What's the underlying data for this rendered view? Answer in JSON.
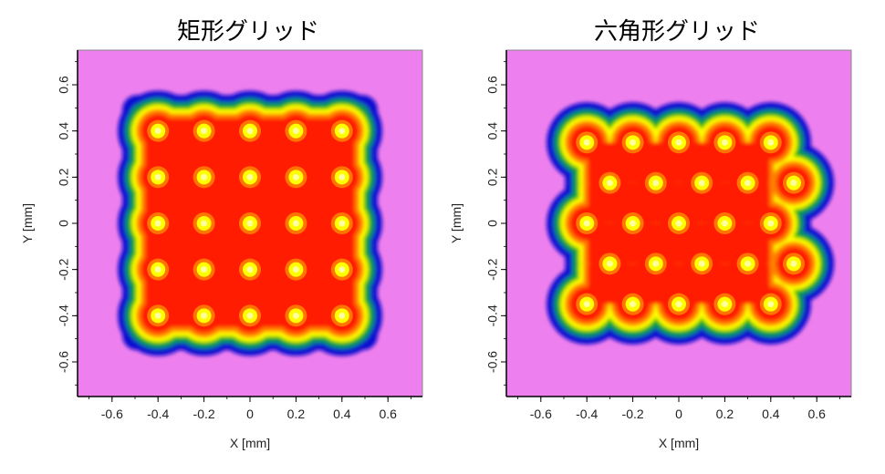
{
  "chart_data": [
    {
      "type": "heatmap",
      "title": "矩形グリッド",
      "xlabel": "X [mm]",
      "ylabel": "Y [mm]",
      "xlim": [
        -0.75,
        0.75
      ],
      "ylim": [
        -0.75,
        0.75
      ],
      "xticks": [
        "-0.6",
        "-0.4",
        "-0.2",
        "0",
        "0.2",
        "0.4",
        "0.6"
      ],
      "yticks": [
        "0.6",
        "0.4",
        "0.2",
        "0",
        "-0.2",
        "-0.4",
        "-0.6"
      ],
      "grid": false,
      "colormap": [
        "#ee7fee",
        "#1010d0",
        "#00b000",
        "#ffff00",
        "#ff8000",
        "#ff1a00"
      ],
      "grid_type": "rectangular",
      "spot_centers_x": [
        -0.4,
        -0.2,
        0.0,
        0.2,
        0.4
      ],
      "spot_centers_y": [
        -0.4,
        -0.2,
        0.0,
        0.2,
        0.4
      ],
      "extent": [
        -0.5,
        0.5,
        -0.5,
        0.5
      ]
    },
    {
      "type": "heatmap",
      "title": "六角形グリッド",
      "xlabel": "X [mm]",
      "ylabel": "Y [mm]",
      "xlim": [
        -0.75,
        0.75
      ],
      "ylim": [
        -0.75,
        0.75
      ],
      "xticks": [
        "-0.6",
        "-0.4",
        "-0.2",
        "0",
        "0.2",
        "0.4",
        "0.6"
      ],
      "yticks": [
        "0.6",
        "0.4",
        "0.2",
        "0",
        "-0.2",
        "-0.4",
        "-0.6"
      ],
      "grid": false,
      "colormap": [
        "#ee7fee",
        "#1010d0",
        "#00b000",
        "#ffff00",
        "#ff8000",
        "#ff1a00"
      ],
      "grid_type": "hexagonal",
      "spot_rows_y": [
        0.35,
        0.175,
        0.0,
        -0.175,
        -0.35
      ],
      "spot_rows_x": [
        [
          -0.4,
          -0.2,
          0.0,
          0.2,
          0.4
        ],
        [
          -0.3,
          -0.1,
          0.1,
          0.3,
          0.5
        ],
        [
          -0.4,
          -0.2,
          0.0,
          0.2,
          0.4
        ],
        [
          -0.3,
          -0.1,
          0.1,
          0.3,
          0.5
        ],
        [
          -0.4,
          -0.2,
          0.0,
          0.2,
          0.4
        ]
      ]
    }
  ]
}
